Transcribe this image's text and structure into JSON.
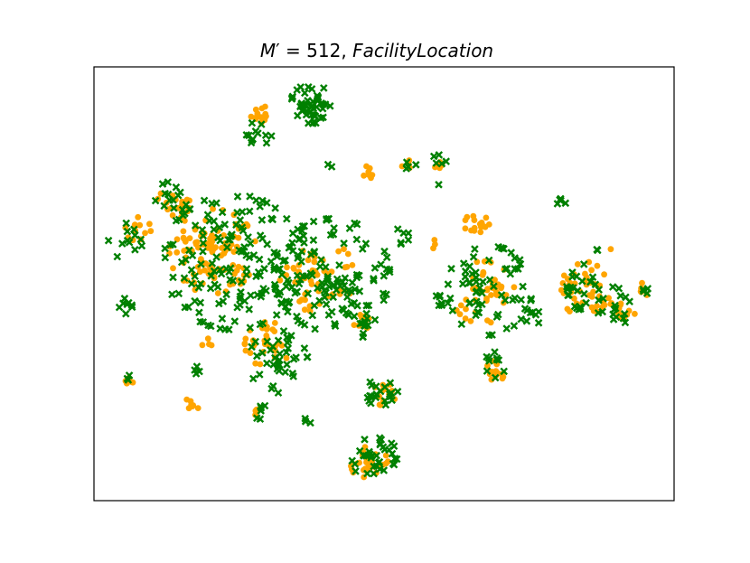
{
  "chart_data": {
    "type": "scatter",
    "title": {
      "math": "M",
      "prime": "′",
      "eq": " = 512, ",
      "label": "FacilityLocation"
    },
    "xlabel": "",
    "ylabel": "",
    "ticks": "none",
    "grid": false,
    "legend": "none",
    "xlim": [
      0,
      100
    ],
    "ylim": [
      0,
      100
    ],
    "series": [
      {
        "marker": "circle",
        "color": "#ffa500",
        "clusters": [
          {
            "cx": 28.6,
            "cy": 89.2,
            "r": 1.6,
            "n": 14
          },
          {
            "cx": 47.3,
            "cy": 75.6,
            "r": 1.4,
            "n": 7
          },
          {
            "cx": 54.2,
            "cy": 77.3,
            "r": 1.1,
            "n": 5
          },
          {
            "cx": 59.1,
            "cy": 77.5,
            "r": 1.2,
            "n": 5
          },
          {
            "cx": 13.7,
            "cy": 68.5,
            "r": 2.8,
            "n": 18
          },
          {
            "cx": 7.6,
            "cy": 62.5,
            "r": 2.2,
            "n": 12
          },
          {
            "cx": 20.5,
            "cy": 57.5,
            "r": 7.5,
            "n": 100
          },
          {
            "cx": 38.5,
            "cy": 52.0,
            "r": 6.5,
            "n": 50
          },
          {
            "cx": 46.0,
            "cy": 40.5,
            "r": 1.8,
            "n": 8
          },
          {
            "cx": 30.0,
            "cy": 36.0,
            "r": 4.0,
            "n": 30
          },
          {
            "cx": 19.4,
            "cy": 36.2,
            "r": 1.0,
            "n": 4
          },
          {
            "cx": 6.0,
            "cy": 28.0,
            "r": 0.9,
            "n": 7
          },
          {
            "cx": 17.0,
            "cy": 22.5,
            "r": 1.3,
            "n": 8
          },
          {
            "cx": 28.5,
            "cy": 20.0,
            "r": 1.2,
            "n": 4
          },
          {
            "cx": 50.0,
            "cy": 24.5,
            "r": 2.0,
            "n": 12
          },
          {
            "cx": 47.5,
            "cy": 8.5,
            "r": 3.2,
            "n": 35
          },
          {
            "cx": 66.4,
            "cy": 63.7,
            "r": 2.5,
            "n": 16
          },
          {
            "cx": 58.8,
            "cy": 59.3,
            "r": 1.0,
            "n": 3
          },
          {
            "cx": 67.0,
            "cy": 48.0,
            "r": 5.5,
            "n": 40
          },
          {
            "cx": 69.3,
            "cy": 30.0,
            "r": 1.8,
            "n": 12
          },
          {
            "cx": 85.3,
            "cy": 48.5,
            "r": 5.0,
            "n": 40
          },
          {
            "cx": 90.8,
            "cy": 43.0,
            "r": 2.5,
            "n": 12
          },
          {
            "cx": 94.5,
            "cy": 48.5,
            "r": 1.3,
            "n": 6
          },
          {
            "cx": 89.3,
            "cy": 58.0,
            "r": 0.6,
            "n": 1
          }
        ]
      },
      {
        "marker": "x",
        "color": "#008000",
        "clusters": [
          {
            "cx": 37.5,
            "cy": 91.5,
            "r": 3.5,
            "n": 45
          },
          {
            "cx": 28.2,
            "cy": 85.0,
            "r": 2.5,
            "n": 12
          },
          {
            "cx": 40.0,
            "cy": 77.0,
            "r": 1.0,
            "n": 2
          },
          {
            "cx": 54.8,
            "cy": 77.5,
            "r": 1.2,
            "n": 4
          },
          {
            "cx": 59.2,
            "cy": 78.3,
            "r": 1.5,
            "n": 5
          },
          {
            "cx": 13.5,
            "cy": 69.0,
            "r": 3.5,
            "n": 16
          },
          {
            "cx": 6.0,
            "cy": 60.0,
            "r": 3.5,
            "n": 12
          },
          {
            "cx": 24.0,
            "cy": 55.0,
            "r": 12.0,
            "n": 150
          },
          {
            "cx": 41.0,
            "cy": 52.0,
            "r": 10.0,
            "n": 130
          },
          {
            "cx": 52.5,
            "cy": 61.5,
            "r": 2.0,
            "n": 6
          },
          {
            "cx": 47.0,
            "cy": 40.2,
            "r": 2.0,
            "n": 10
          },
          {
            "cx": 32.0,
            "cy": 32.0,
            "r": 5.5,
            "n": 40
          },
          {
            "cx": 18.2,
            "cy": 30.5,
            "r": 1.5,
            "n": 4
          },
          {
            "cx": 5.5,
            "cy": 45.0,
            "r": 1.5,
            "n": 8
          },
          {
            "cx": 5.9,
            "cy": 28.5,
            "r": 0.8,
            "n": 3
          },
          {
            "cx": 28.7,
            "cy": 20.5,
            "r": 1.3,
            "n": 6
          },
          {
            "cx": 50.0,
            "cy": 25.0,
            "r": 3.0,
            "n": 20
          },
          {
            "cx": 36.5,
            "cy": 18.0,
            "r": 0.8,
            "n": 3
          },
          {
            "cx": 48.5,
            "cy": 9.5,
            "r": 4.0,
            "n": 35
          },
          {
            "cx": 67.5,
            "cy": 48.5,
            "r": 8.0,
            "n": 60
          },
          {
            "cx": 60.0,
            "cy": 46.0,
            "r": 1.5,
            "n": 6
          },
          {
            "cx": 72.5,
            "cy": 54.0,
            "r": 2.0,
            "n": 8
          },
          {
            "cx": 75.5,
            "cy": 42.0,
            "r": 2.0,
            "n": 6
          },
          {
            "cx": 69.0,
            "cy": 31.0,
            "r": 2.5,
            "n": 10
          },
          {
            "cx": 80.3,
            "cy": 68.9,
            "r": 1.0,
            "n": 6
          },
          {
            "cx": 86.0,
            "cy": 49.0,
            "r": 4.5,
            "n": 28
          },
          {
            "cx": 90.5,
            "cy": 44.0,
            "r": 2.5,
            "n": 12
          },
          {
            "cx": 94.5,
            "cy": 48.5,
            "r": 1.0,
            "n": 4
          },
          {
            "cx": 59.5,
            "cy": 73.0,
            "r": 0.6,
            "n": 1
          },
          {
            "cx": 81.5,
            "cy": 48.0,
            "r": 0.8,
            "n": 2
          },
          {
            "cx": 87.5,
            "cy": 58.0,
            "r": 0.8,
            "n": 2
          }
        ]
      }
    ]
  }
}
